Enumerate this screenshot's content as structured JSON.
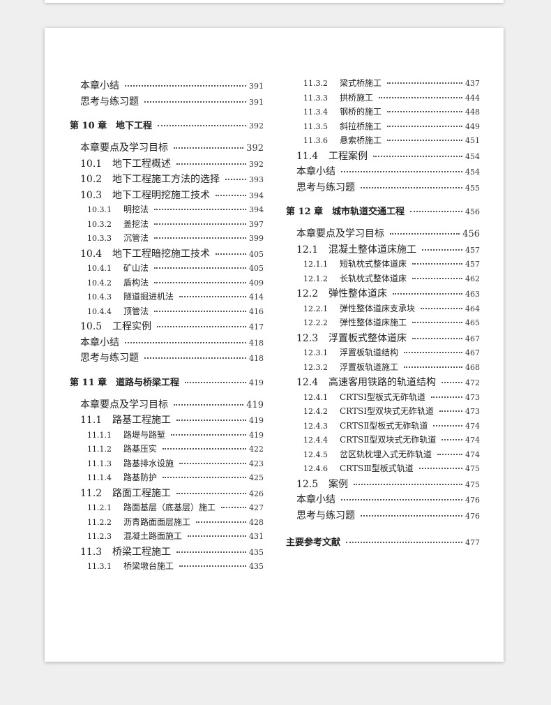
{
  "columns": [
    [
      {
        "type": "l1",
        "num": "",
        "title": "本章小结",
        "page": "391"
      },
      {
        "type": "l1",
        "num": "",
        "title": "思考与练习题",
        "page": "391"
      },
      {
        "type": "chapter",
        "num": "第 10 章",
        "title": "地下工程",
        "page": "392"
      },
      {
        "type": "l1 goal",
        "num": "",
        "title": "本章要点及学习目标",
        "page": "392"
      },
      {
        "type": "l1",
        "num": "10.1",
        "title": "地下工程概述",
        "page": "392"
      },
      {
        "type": "l1",
        "num": "10.2",
        "title": "地下工程施工方法的选择",
        "page": "393"
      },
      {
        "type": "l1",
        "num": "10.3",
        "title": "地下工程明挖施工技术",
        "page": "394"
      },
      {
        "type": "l2",
        "num": "10.3.1",
        "title": "明挖法",
        "page": "394"
      },
      {
        "type": "l2",
        "num": "10.3.2",
        "title": "盖挖法",
        "page": "397"
      },
      {
        "type": "l2",
        "num": "10.3.3",
        "title": "沉管法",
        "page": "399"
      },
      {
        "type": "l1",
        "num": "10.4",
        "title": "地下工程暗挖施工技术",
        "page": "405"
      },
      {
        "type": "l2",
        "num": "10.4.1",
        "title": "矿山法",
        "page": "405"
      },
      {
        "type": "l2",
        "num": "10.4.2",
        "title": "盾构法",
        "page": "409"
      },
      {
        "type": "l2",
        "num": "10.4.3",
        "title": "隧道掘进机法",
        "page": "414"
      },
      {
        "type": "l2",
        "num": "10.4.4",
        "title": "顶管法",
        "page": "416"
      },
      {
        "type": "l1",
        "num": "10.5",
        "title": "工程实例",
        "page": "417"
      },
      {
        "type": "l1",
        "num": "",
        "title": "本章小结",
        "page": "418"
      },
      {
        "type": "l1",
        "num": "",
        "title": "思考与练习题",
        "page": "418"
      },
      {
        "type": "chapter",
        "num": "第 11 章",
        "title": "道路与桥梁工程",
        "page": "419"
      },
      {
        "type": "l1 goal",
        "num": "",
        "title": "本章要点及学习目标",
        "page": "419"
      },
      {
        "type": "l1",
        "num": "11.1",
        "title": "路基工程施工",
        "page": "419"
      },
      {
        "type": "l2",
        "num": "11.1.1",
        "title": "路堤与路堑",
        "page": "419"
      },
      {
        "type": "l2",
        "num": "11.1.2",
        "title": "路基压实",
        "page": "422"
      },
      {
        "type": "l2",
        "num": "11.1.3",
        "title": "路基排水设施",
        "page": "423"
      },
      {
        "type": "l2",
        "num": "11.1.4",
        "title": "路基防护",
        "page": "425"
      },
      {
        "type": "l1",
        "num": "11.2",
        "title": "路面工程施工",
        "page": "426"
      },
      {
        "type": "l2",
        "num": "11.2.1",
        "title": "路面基层（底基层）施工",
        "page": "427"
      },
      {
        "type": "l2",
        "num": "11.2.2",
        "title": "沥青路面面层施工",
        "page": "428"
      },
      {
        "type": "l2",
        "num": "11.2.3",
        "title": "混凝土路面施工",
        "page": "431"
      },
      {
        "type": "l1",
        "num": "11.3",
        "title": "桥梁工程施工",
        "page": "435"
      },
      {
        "type": "l2",
        "num": "11.3.1",
        "title": "桥梁墩台施工",
        "page": "435"
      }
    ],
    [
      {
        "type": "l2",
        "num": "11.3.2",
        "title": "梁式桥施工",
        "page": "437"
      },
      {
        "type": "l2",
        "num": "11.3.3",
        "title": "拱桥施工",
        "page": "444"
      },
      {
        "type": "l2",
        "num": "11.3.4",
        "title": "钢桥的施工",
        "page": "448"
      },
      {
        "type": "l2",
        "num": "11.3.5",
        "title": "斜拉桥施工",
        "page": "449"
      },
      {
        "type": "l2",
        "num": "11.3.6",
        "title": "悬索桥施工",
        "page": "451"
      },
      {
        "type": "l1",
        "num": "11.4",
        "title": "工程案例",
        "page": "454"
      },
      {
        "type": "l1",
        "num": "",
        "title": "本章小结",
        "page": "454"
      },
      {
        "type": "l1",
        "num": "",
        "title": "思考与练习题",
        "page": "455"
      },
      {
        "type": "chapter",
        "num": "第 12 章",
        "title": "城市轨道交通工程",
        "page": "456"
      },
      {
        "type": "l1 goal",
        "num": "",
        "title": "本章要点及学习目标",
        "page": "456"
      },
      {
        "type": "l1",
        "num": "12.1",
        "title": "混凝土整体道床施工",
        "page": "457"
      },
      {
        "type": "l2",
        "num": "12.1.1",
        "title": "短轨枕式整体道床",
        "page": "457"
      },
      {
        "type": "l2",
        "num": "12.1.2",
        "title": "长轨枕式整体道床",
        "page": "462"
      },
      {
        "type": "l1",
        "num": "12.2",
        "title": "弹性整体道床",
        "page": "463"
      },
      {
        "type": "l2",
        "num": "12.2.1",
        "title": "弹性整体道床支承块",
        "page": "464"
      },
      {
        "type": "l2",
        "num": "12.2.2",
        "title": "弹性整体道床施工",
        "page": "465"
      },
      {
        "type": "l1",
        "num": "12.3",
        "title": "浮置板式整体道床",
        "page": "467"
      },
      {
        "type": "l2",
        "num": "12.3.1",
        "title": "浮置板轨道结构",
        "page": "467"
      },
      {
        "type": "l2",
        "num": "12.3.2",
        "title": "浮置板轨道施工",
        "page": "468"
      },
      {
        "type": "l1",
        "num": "12.4",
        "title": "高速客用铁路的轨道结构",
        "page": "472"
      },
      {
        "type": "l2",
        "num": "12.4.1",
        "title": "CRTSⅠ型板式无砟轨道",
        "page": "473"
      },
      {
        "type": "l2",
        "num": "12.4.2",
        "title": "CRTSⅠ型双块式无砟轨道",
        "page": "473"
      },
      {
        "type": "l2",
        "num": "12.4.3",
        "title": "CRTSⅡ型板式无砟轨道",
        "page": "474"
      },
      {
        "type": "l2",
        "num": "12.4.4",
        "title": "CRTSⅡ型双块式无砟轨道",
        "page": "474"
      },
      {
        "type": "l2",
        "num": "12.4.5",
        "title": "岔区轨枕埋入式无砟轨道",
        "page": "474"
      },
      {
        "type": "l2",
        "num": "12.4.6",
        "title": "CRTSⅢ型板式轨道",
        "page": "475"
      },
      {
        "type": "l1",
        "num": "12.5",
        "title": "案例",
        "page": "475"
      },
      {
        "type": "l1",
        "num": "",
        "title": "本章小结",
        "page": "476"
      },
      {
        "type": "l1",
        "num": "",
        "title": "思考与练习题",
        "page": "476"
      },
      {
        "type": "chapter",
        "num": "",
        "title": "主要参考文献",
        "page": "477"
      }
    ]
  ]
}
